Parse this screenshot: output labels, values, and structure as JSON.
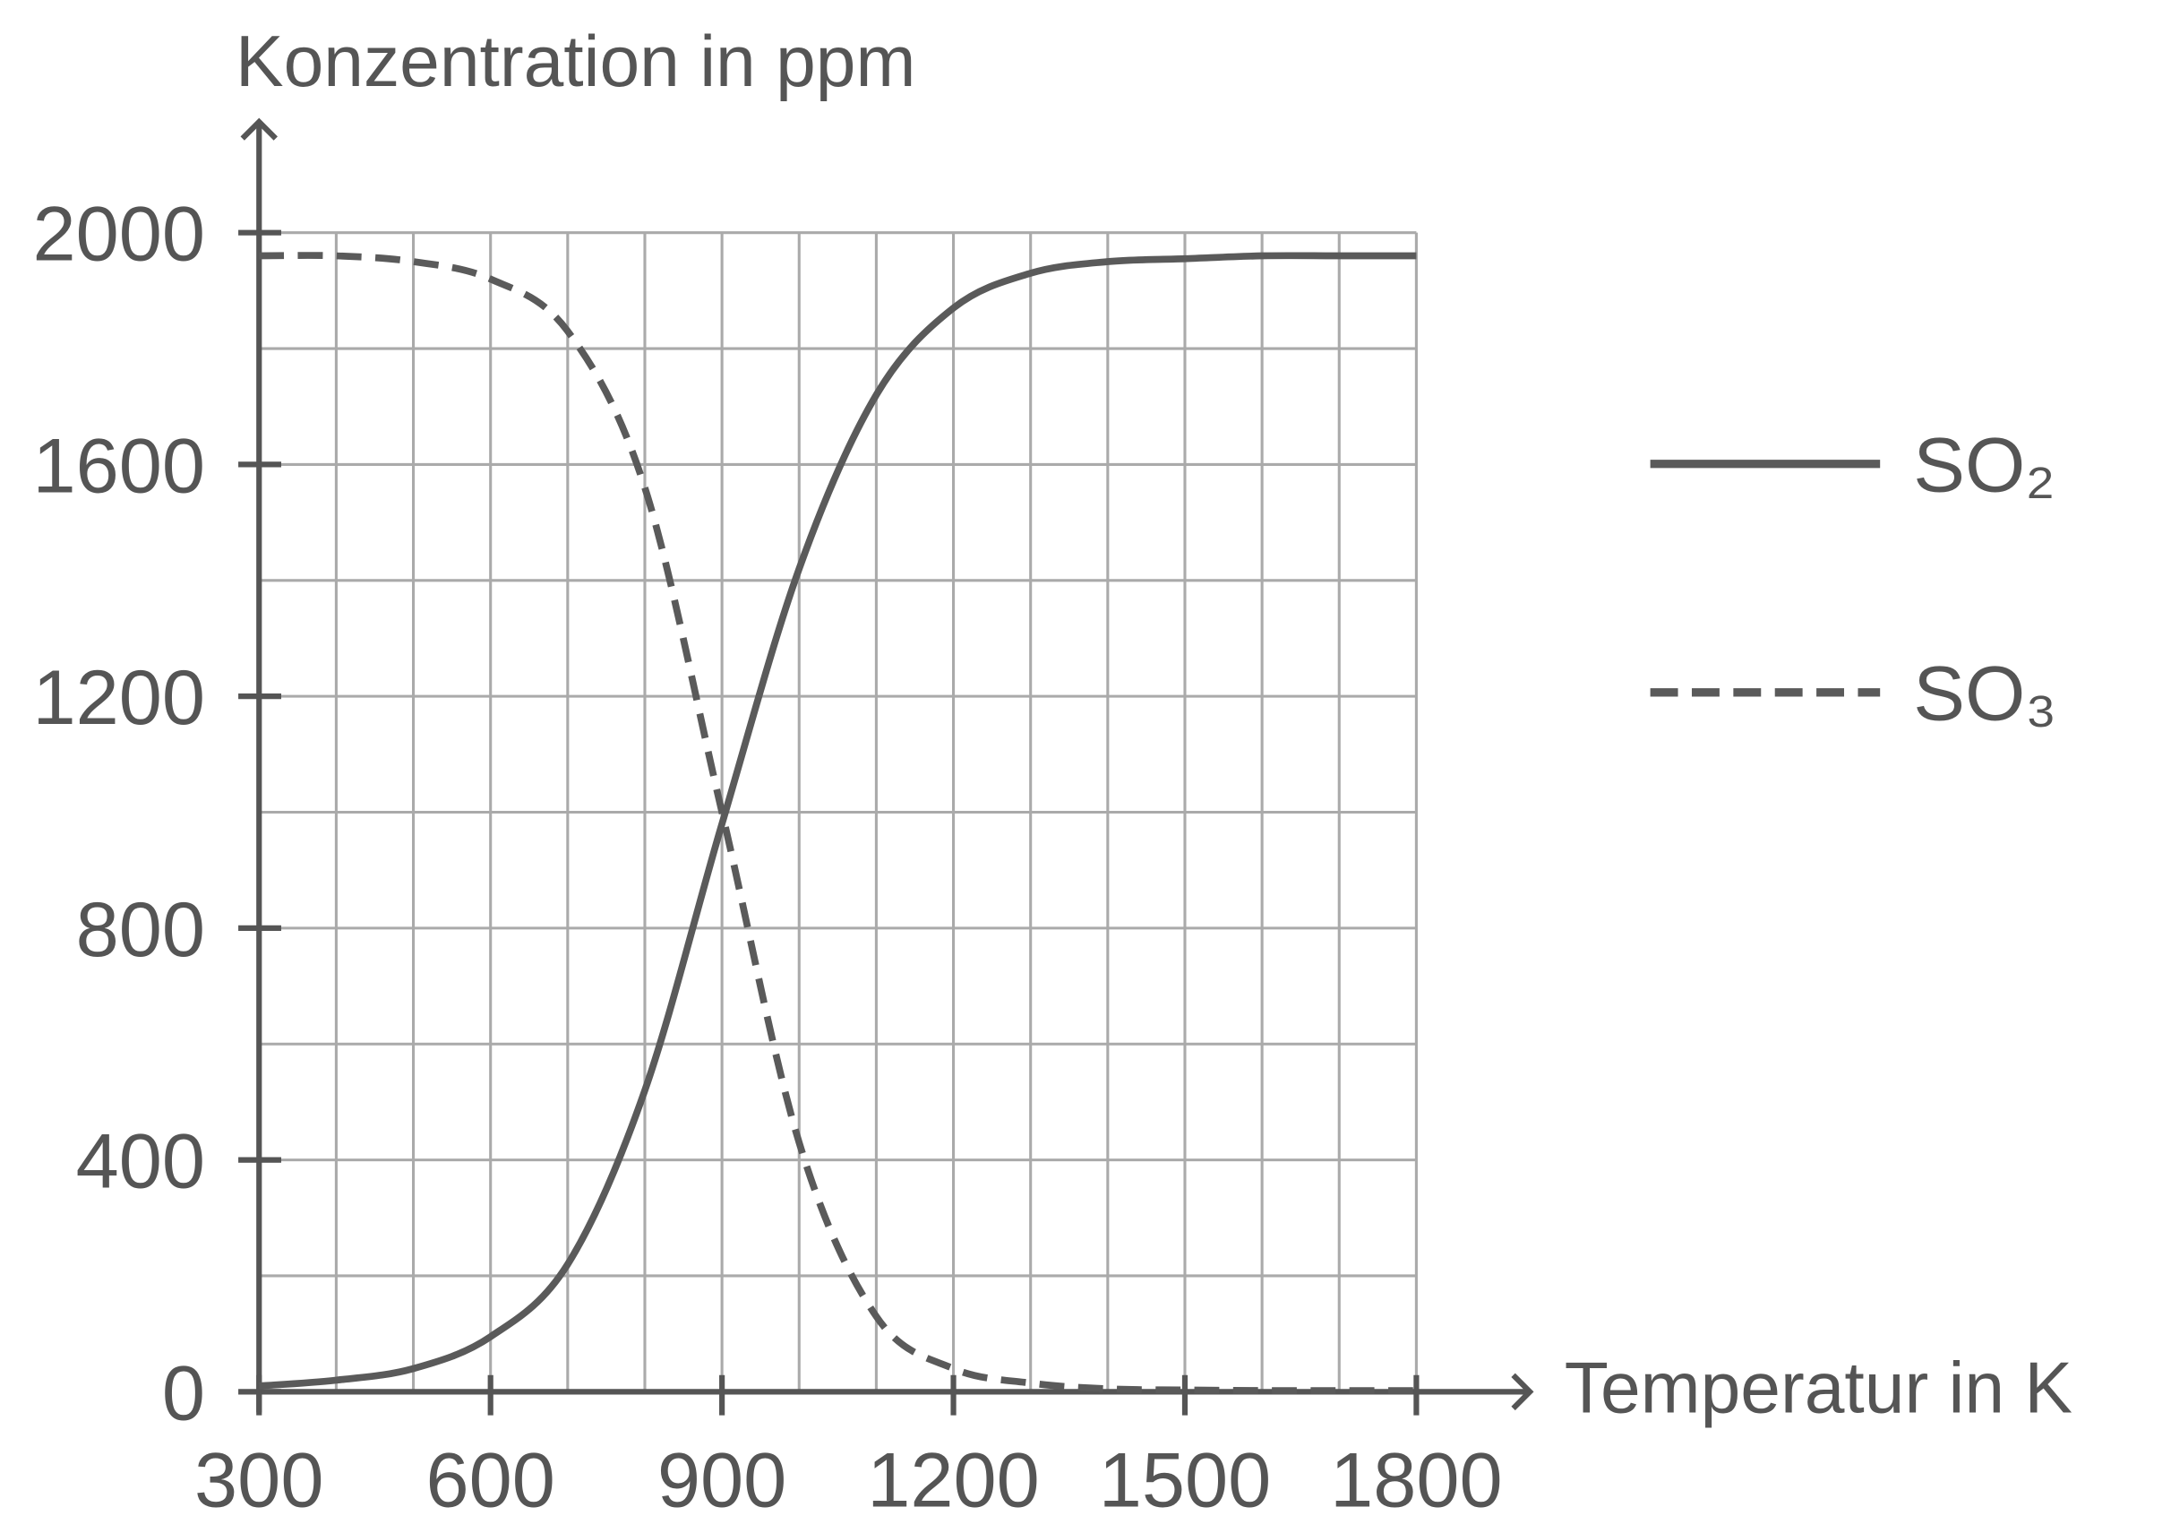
{
  "chart_data": {
    "type": "line",
    "y_label": "Konzentration in ppm",
    "x_label": "Temperatur in K",
    "x": [
      300,
      400,
      500,
      600,
      700,
      800,
      900,
      1000,
      1100,
      1200,
      1300,
      1400,
      1500,
      1600,
      1700,
      1800
    ],
    "series": [
      {
        "name": "SO₂",
        "color": "#5a5a5a",
        "dash": false,
        "values": [
          10,
          20,
          40,
          95,
          220,
          520,
          980,
          1420,
          1720,
          1870,
          1930,
          1950,
          1955,
          1960,
          1960,
          1960
        ]
      },
      {
        "name": "SO₃",
        "color": "#5a5a5a",
        "dash": true,
        "values": [
          1960,
          1960,
          1950,
          1920,
          1830,
          1560,
          1000,
          430,
          130,
          40,
          15,
          5,
          3,
          2,
          2,
          2
        ]
      }
    ],
    "xlim": [
      300,
      1800
    ],
    "ylim": [
      0,
      2000
    ],
    "xticks": [
      300,
      600,
      900,
      1200,
      1500,
      1800
    ],
    "yticks": [
      0,
      400,
      800,
      1200,
      1600,
      2000
    ],
    "xgrid": [
      300,
      400,
      500,
      600,
      700,
      800,
      900,
      1000,
      1100,
      1200,
      1300,
      1400,
      1500,
      1600,
      1700,
      1800
    ],
    "ygrid": [
      0,
      200,
      400,
      600,
      800,
      1000,
      1200,
      1400,
      1600,
      1800,
      2000
    ],
    "grid": true,
    "legend": "right"
  }
}
